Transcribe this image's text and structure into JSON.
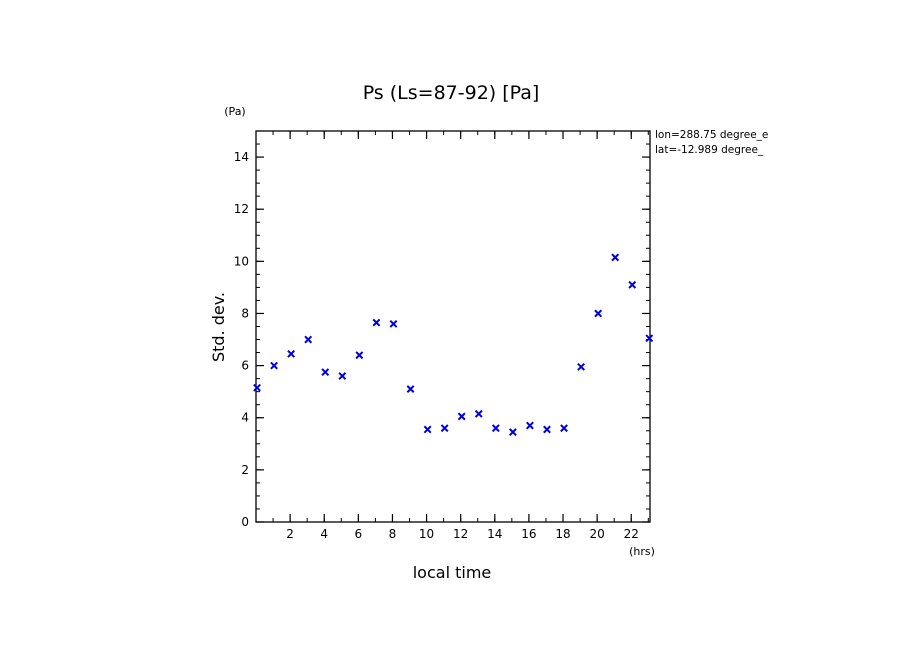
{
  "chart_data": {
    "type": "scatter",
    "title": "Ps (Ls=87-92) [Pa]",
    "xlabel": "local time",
    "ylabel": "Std. dev.",
    "x_unit": "(hrs)",
    "y_unit": "(Pa)",
    "xlim": [
      0,
      23.1
    ],
    "ylim": [
      0,
      15
    ],
    "x_ticks": [
      2,
      4,
      6,
      8,
      10,
      12,
      14,
      16,
      18,
      20,
      22
    ],
    "y_ticks": [
      0,
      2,
      4,
      6,
      8,
      10,
      12,
      14
    ],
    "x_minor_step": 1,
    "y_minor_step": 0.5,
    "marker": "x",
    "marker_color": "#0000dd",
    "grid": false,
    "annotations": [
      "lon=288.75 degree_e",
      "lat=-12.989 degree_"
    ],
    "series": [
      {
        "x": [
          0.06,
          1.06,
          2.06,
          3.06,
          4.06,
          5.06,
          6.06,
          7.06,
          8.06,
          9.06,
          10.06,
          11.06,
          12.06,
          13.06,
          14.06,
          15.06,
          16.06,
          17.06,
          18.06,
          19.06,
          20.06,
          21.06,
          22.06,
          23.06
        ],
        "y": [
          5.15,
          6.0,
          6.45,
          7.0,
          5.75,
          5.6,
          6.4,
          7.65,
          7.6,
          5.1,
          3.55,
          3.6,
          4.05,
          4.15,
          3.6,
          3.45,
          3.7,
          3.55,
          3.6,
          5.95,
          8.0,
          10.15,
          9.1,
          7.05
        ]
      }
    ]
  }
}
